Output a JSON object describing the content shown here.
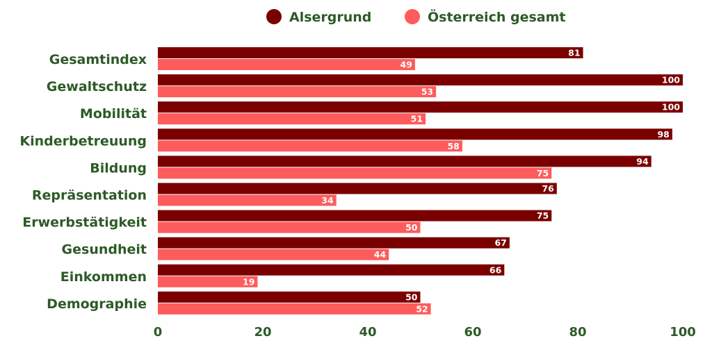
{
  "chart_data": {
    "type": "bar",
    "orientation": "horizontal",
    "categories": [
      "Gesamtindex",
      "Gewaltschutz",
      "Mobilität",
      "Kinderbetreuung",
      "Bildung",
      "Repräsentation",
      "Erwerbstätigkeit",
      "Gesundheit",
      "Einkommen",
      "Demographie"
    ],
    "series": [
      {
        "name": "Alsergrund",
        "color": "#7a0000",
        "values": [
          81,
          100,
          100,
          98,
          94,
          76,
          75,
          67,
          66,
          50
        ]
      },
      {
        "name": "Österreich gesamt",
        "color": "#fd5c5c",
        "values": [
          49,
          53,
          51,
          58,
          75,
          34,
          50,
          44,
          19,
          52
        ]
      }
    ],
    "xlim": [
      0,
      100
    ],
    "xticks": [
      0,
      20,
      40,
      60,
      80,
      100
    ],
    "grid": false,
    "legend_position": "top-center",
    "label_color": "#2d5a27"
  }
}
